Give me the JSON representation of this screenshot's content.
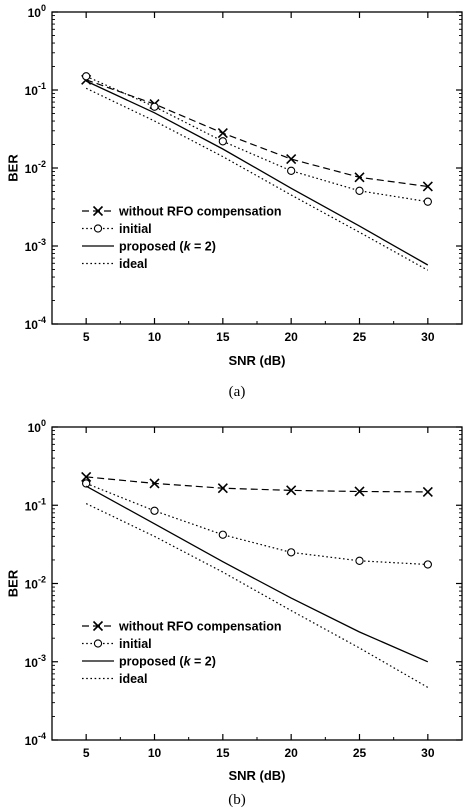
{
  "chart_data": [
    {
      "type": "line",
      "caption": "(a)",
      "xlabel": "SNR (dB)",
      "ylabel": "BER",
      "x": [
        5,
        10,
        15,
        20,
        25,
        30
      ],
      "xlim": [
        2.5,
        32.5
      ],
      "ylim": [
        0.0001,
        1
      ],
      "yscale": "log",
      "xticks": [
        "5",
        "10",
        "15",
        "20",
        "25",
        "30"
      ],
      "yticks": [
        {
          "value": 1,
          "base": "10",
          "exp": "0"
        },
        {
          "value": 0.1,
          "base": "10",
          "exp": "-1"
        },
        {
          "value": 0.01,
          "base": "10",
          "exp": "-2"
        },
        {
          "value": 0.001,
          "base": "10",
          "exp": "-3"
        },
        {
          "value": 0.0001,
          "base": "10",
          "exp": "-4"
        }
      ],
      "legend_position": "lower-left",
      "series": [
        {
          "name": "without RFO compensation",
          "style": "dashed",
          "marker": "x",
          "values": [
            0.135,
            0.066,
            0.028,
            0.013,
            0.0076,
            0.0058
          ]
        },
        {
          "name": "initial",
          "style": "dotted",
          "marker": "circle",
          "values": [
            0.15,
            0.061,
            0.022,
            0.0092,
            0.0051,
            0.0037
          ]
        },
        {
          "name": "proposed (k = 2)",
          "name_parts": [
            "proposed (",
            "k",
            " = 2)"
          ],
          "style": "solid",
          "marker": "none",
          "values": [
            0.13,
            0.051,
            0.0175,
            0.0055,
            0.0018,
            0.00057
          ]
        },
        {
          "name": "ideal",
          "style": "dotted",
          "marker": "none",
          "values": [
            0.105,
            0.04,
            0.014,
            0.0045,
            0.0015,
            0.00049
          ]
        }
      ]
    },
    {
      "type": "line",
      "caption": "(b)",
      "xlabel": "SNR (dB)",
      "ylabel": "BER",
      "x": [
        5,
        10,
        15,
        20,
        25,
        30
      ],
      "xlim": [
        2.5,
        32.5
      ],
      "ylim": [
        0.0001,
        1
      ],
      "yscale": "log",
      "xticks": [
        "5",
        "10",
        "15",
        "20",
        "25",
        "30"
      ],
      "yticks": [
        {
          "value": 1,
          "base": "10",
          "exp": "0"
        },
        {
          "value": 0.1,
          "base": "10",
          "exp": "-1"
        },
        {
          "value": 0.01,
          "base": "10",
          "exp": "-2"
        },
        {
          "value": 0.001,
          "base": "10",
          "exp": "-3"
        },
        {
          "value": 0.0001,
          "base": "10",
          "exp": "-4"
        }
      ],
      "legend_position": "lower-left",
      "series": [
        {
          "name": "without RFO compensation",
          "style": "dashed",
          "marker": "x",
          "values": [
            0.23,
            0.19,
            0.165,
            0.155,
            0.15,
            0.148
          ]
        },
        {
          "name": "initial",
          "style": "dotted",
          "marker": "circle",
          "values": [
            0.19,
            0.085,
            0.042,
            0.025,
            0.0195,
            0.0175
          ]
        },
        {
          "name": "proposed (k = 2)",
          "name_parts": [
            "proposed (",
            "k",
            " = 2)"
          ],
          "style": "solid",
          "marker": "none",
          "values": [
            0.175,
            0.058,
            0.019,
            0.0065,
            0.0024,
            0.001
          ]
        },
        {
          "name": "ideal",
          "style": "dotted",
          "marker": "none",
          "values": [
            0.105,
            0.04,
            0.014,
            0.0045,
            0.0015,
            0.00047
          ]
        }
      ]
    }
  ]
}
